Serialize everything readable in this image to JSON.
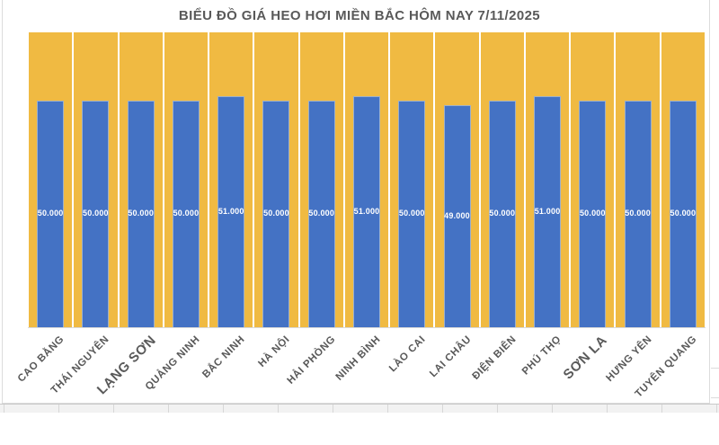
{
  "chart_data": {
    "type": "bar",
    "title": "BIỂU ĐỒ GIÁ HEO HƠI MIỀN BẮC HÔM NAY 7/11/2025",
    "categories": [
      "CAO BẰNG",
      "THÁI NGUYÊN",
      "LẠNG SƠN",
      "QUẢNG NINH",
      "BẮC NINH",
      "HÀ NỘI",
      "HẢI PHÒNG",
      "NINH BÌNH",
      "LÀO CAI",
      "LAI CHÂU",
      "ĐIỆN BIÊN",
      "PHÚ THỌ",
      "SƠN LA",
      "HƯNG YÊN",
      "TUYÊN QUANG"
    ],
    "values": [
      50000,
      50000,
      50000,
      50000,
      51000,
      50000,
      50000,
      51000,
      50000,
      49000,
      50000,
      51000,
      50000,
      50000,
      50000
    ],
    "value_labels": [
      "50.000",
      "50.000",
      "50.000",
      "50.000",
      "51.000",
      "50.000",
      "50.000",
      "51.000",
      "50.000",
      "49.000",
      "50.000",
      "51.000",
      "50.000",
      "50.000",
      "50.000"
    ],
    "emphasized_label_indices": [
      2,
      12
    ],
    "xlabel": "",
    "ylabel": "",
    "ylim": [
      0,
      65000
    ],
    "grid": false,
    "legend": false
  },
  "colors": {
    "bar_fill": "#4472C4",
    "bar_background": "#F0BA42",
    "title_text": "#595959",
    "category_text": "#595959",
    "value_text": "#FFFFFF",
    "axis_line": "#D9D9D9"
  }
}
